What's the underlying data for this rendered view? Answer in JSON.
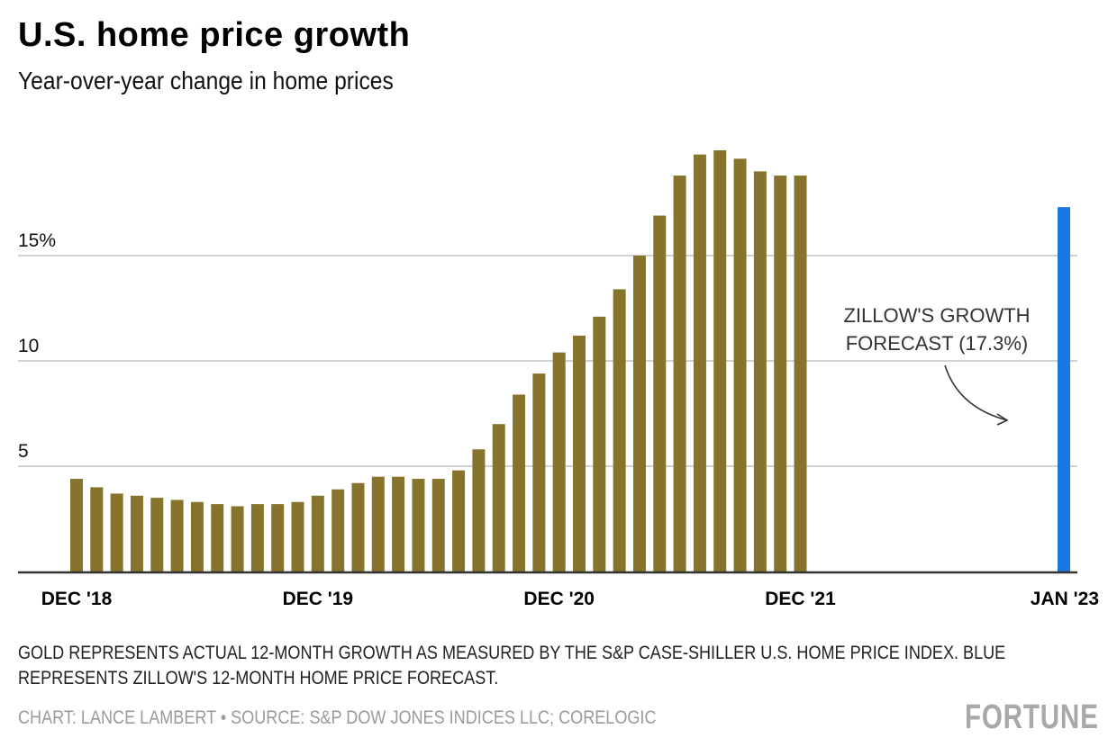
{
  "header": {
    "title": "U.S. home price growth",
    "subtitle": "Year-over-year change in home prices"
  },
  "chart_data": {
    "type": "bar",
    "title": "U.S. home price growth",
    "subtitle": "Year-over-year change in home prices",
    "xlabel": "",
    "ylabel": "",
    "ylim": [
      0,
      20
    ],
    "grid": true,
    "y_ticks": [
      {
        "value": 5,
        "label": "5"
      },
      {
        "value": 10,
        "label": "10"
      },
      {
        "value": 15,
        "label": "15%"
      }
    ],
    "x_tick_labels": [
      {
        "index": 0,
        "label": "DEC '18"
      },
      {
        "index": 12,
        "label": "DEC '19"
      },
      {
        "index": 24,
        "label": "DEC '20"
      },
      {
        "index": 36,
        "label": "DEC '21"
      },
      {
        "index": 49,
        "label": "JAN '23"
      }
    ],
    "series": [
      {
        "name": "Actual 12-month growth (S&P Case-Shiller U.S. Home Price Index)",
        "color": "#87742c",
        "categories": [
          "Dec 2018",
          "Jan 2019",
          "Feb 2019",
          "Mar 2019",
          "Apr 2019",
          "May 2019",
          "Jun 2019",
          "Jul 2019",
          "Aug 2019",
          "Sep 2019",
          "Oct 2019",
          "Nov 2019",
          "Dec 2019",
          "Jan 2020",
          "Feb 2020",
          "Mar 2020",
          "Apr 2020",
          "May 2020",
          "Jun 2020",
          "Jul 2020",
          "Aug 2020",
          "Sep 2020",
          "Oct 2020",
          "Nov 2020",
          "Dec 2020",
          "Jan 2021",
          "Feb 2021",
          "Mar 2021",
          "Apr 2021",
          "May 2021",
          "Jun 2021",
          "Jul 2021",
          "Aug 2021",
          "Sep 2021",
          "Oct 2021",
          "Nov 2021",
          "Dec 2021"
        ],
        "values": [
          4.4,
          4.0,
          3.7,
          3.6,
          3.5,
          3.4,
          3.3,
          3.2,
          3.1,
          3.2,
          3.2,
          3.3,
          3.6,
          3.9,
          4.2,
          4.5,
          4.5,
          4.4,
          4.4,
          4.8,
          5.8,
          7.0,
          8.4,
          9.4,
          10.4,
          11.2,
          12.1,
          13.4,
          15.0,
          16.9,
          18.8,
          19.8,
          20.0,
          19.6,
          19.0,
          18.8,
          18.8
        ]
      },
      {
        "name": "Zillow's 12-month home price forecast",
        "color": "#1877e0",
        "categories": [
          "Jan 2023"
        ],
        "values": [
          17.3
        ]
      }
    ],
    "annotations": [
      {
        "text_lines": [
          "ZILLOW'S GROWTH",
          "FORECAST (17.3%)"
        ],
        "target": "Jan 2023"
      }
    ],
    "legend": "none"
  },
  "notes": {
    "line1": "GOLD REPRESENTS ACTUAL 12-MONTH GROWTH AS MEASURED BY THE S&P CASE-SHILLER U.S. HOME PRICE INDEX. BLUE",
    "line2": "REPRESENTS ZILLOW'S 12-MONTH HOME PRICE FORECAST.",
    "credit": "CHART: LANCE LAMBERT • SOURCE: S&P DOW JONES INDICES LLC; CORELOGIC",
    "brand": "FORTUNE"
  }
}
